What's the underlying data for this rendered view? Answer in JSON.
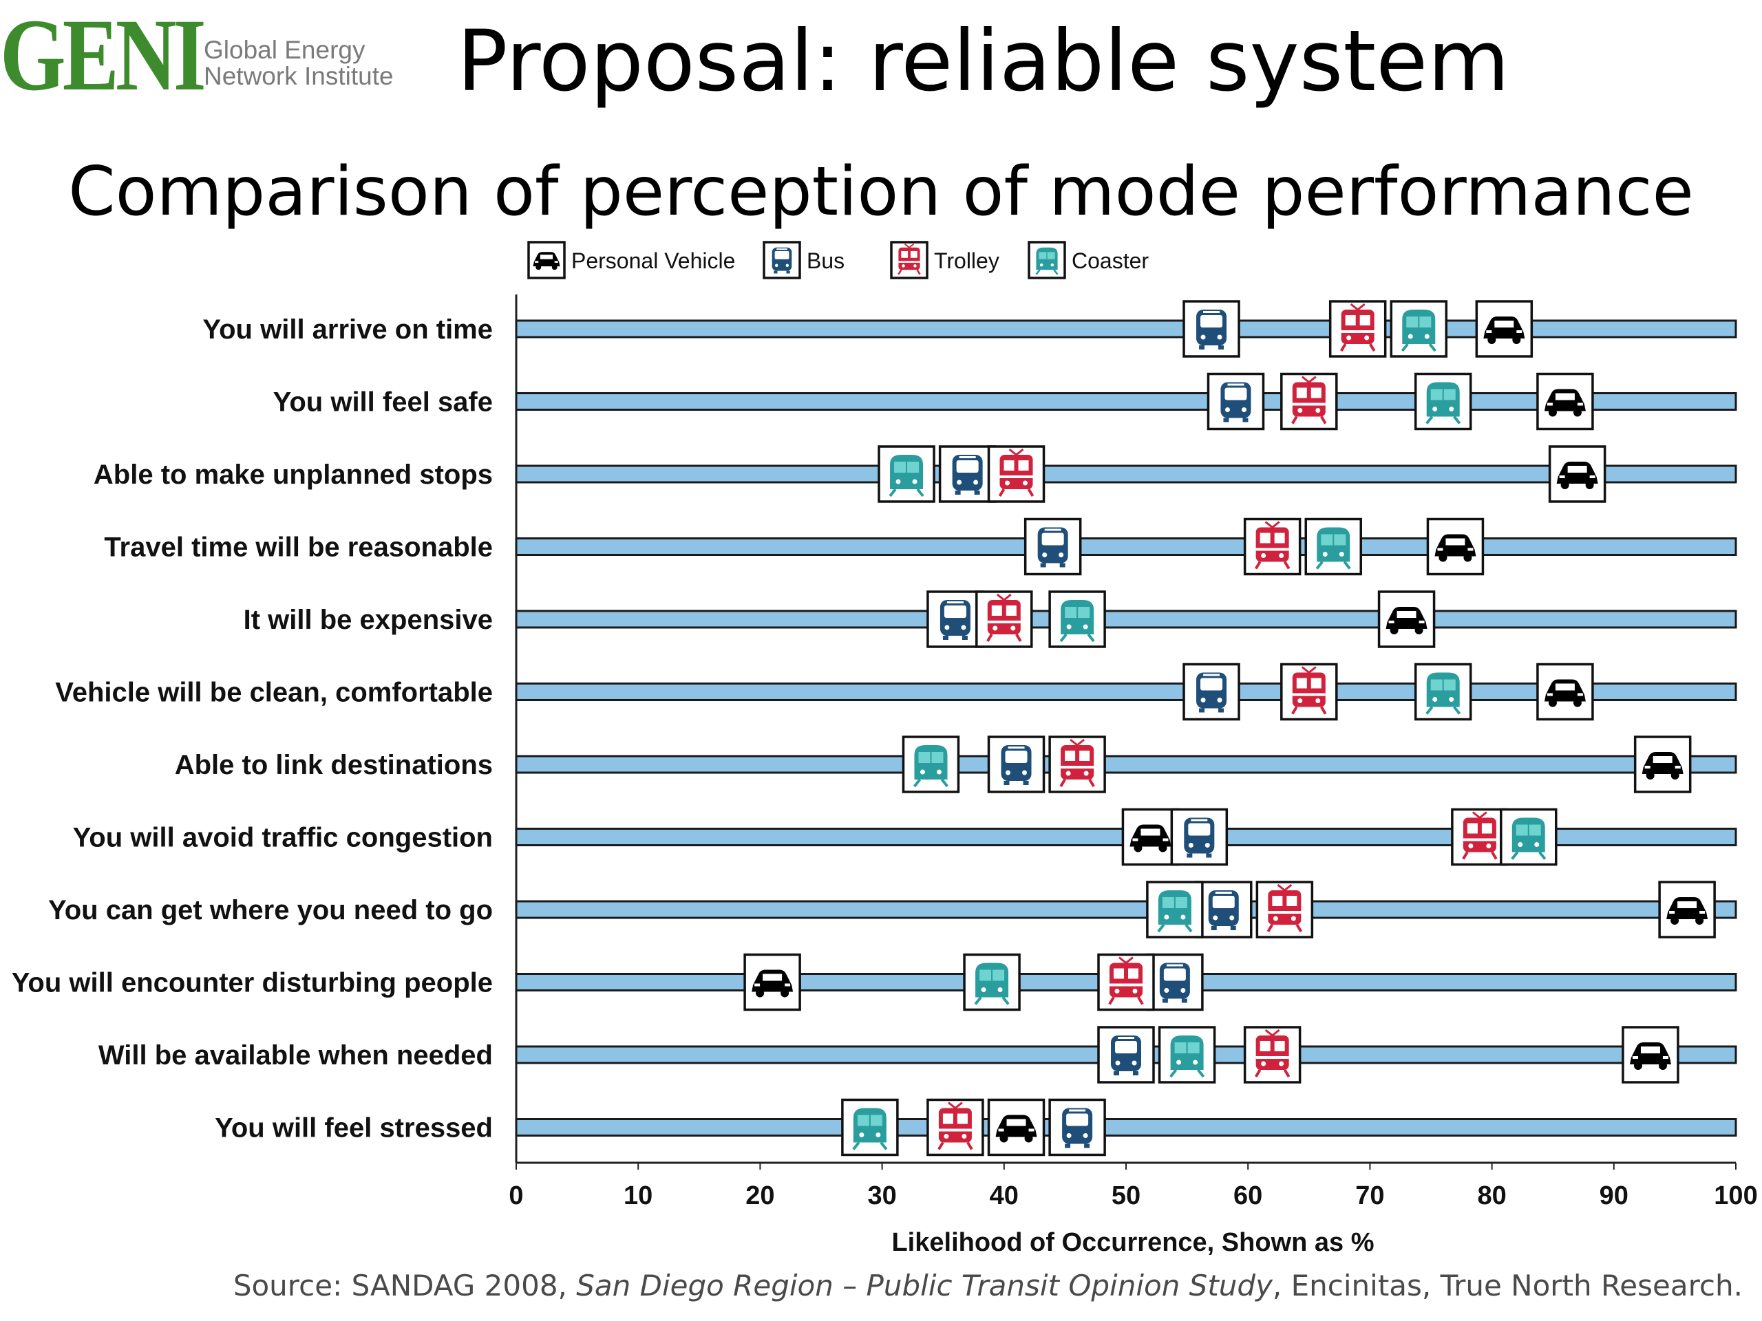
{
  "logo": {
    "word": "GENI",
    "line1": "Global Energy",
    "line2": "Network Institute"
  },
  "slide_title": "Proposal: reliable system",
  "source": {
    "prefix": "Source: SANDAG 2008, ",
    "italic": "San Diego Region – Public Transit Opinion Study",
    "suffix": ", Encinitas, True North Research."
  },
  "colors": {
    "bar_fill": "#8ec3e6",
    "personal_vehicle": "#000000",
    "bus": "#1f4e79",
    "trolley": "#d0223c",
    "coaster": "#2a9d9e"
  },
  "chart_data": {
    "type": "scatter",
    "title": "Comparison of perception of mode performance",
    "xlabel": "Likelihood of Occurrence, Shown as %",
    "xlim": [
      0,
      100
    ],
    "xticks": [
      0,
      10,
      20,
      30,
      40,
      50,
      60,
      70,
      80,
      90,
      100
    ],
    "legend_placement": "top",
    "grid": false,
    "categories": [
      "You will arrive on time",
      "You will feel safe",
      "Able to make unplanned stops",
      "Travel time will be reasonable",
      "It will be expensive",
      "Vehicle will be clean, comfortable",
      "Able to link destinations",
      "You will avoid traffic congestion",
      "You can get where you need to go",
      "You will encounter disturbing people",
      "Will be available when needed",
      "You will feel stressed"
    ],
    "series": [
      {
        "name": "Personal Vehicle",
        "icon": "car-icon",
        "color": "#000000",
        "values": [
          81,
          86,
          87,
          77,
          73,
          86,
          94,
          52,
          96,
          21,
          93,
          41
        ]
      },
      {
        "name": "Bus",
        "icon": "bus-icon",
        "color": "#1f4e79",
        "values": [
          57,
          59,
          37,
          44,
          36,
          57,
          41,
          56,
          58,
          54,
          50,
          46
        ]
      },
      {
        "name": "Trolley",
        "icon": "trolley-icon",
        "color": "#d0223c",
        "values": [
          69,
          65,
          41,
          62,
          40,
          65,
          46,
          79,
          63,
          50,
          62,
          36
        ]
      },
      {
        "name": "Coaster",
        "icon": "coaster-icon",
        "color": "#2a9d9e",
        "values": [
          74,
          76,
          32,
          67,
          46,
          76,
          34,
          83,
          54,
          39,
          55,
          29
        ]
      }
    ]
  }
}
